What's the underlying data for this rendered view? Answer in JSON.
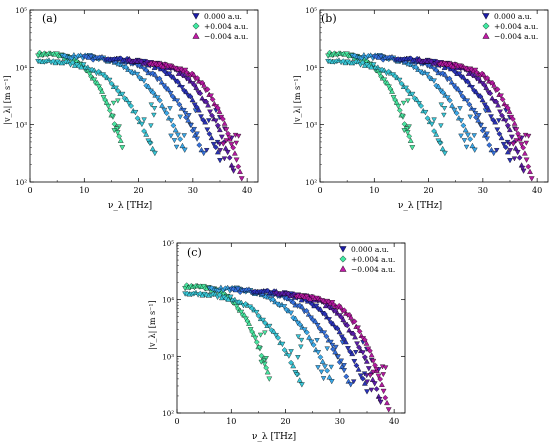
{
  "chart_data": [
    {
      "type": "scatter",
      "panel_label": "(a)",
      "xlabel": "ν_λ [THz]",
      "ylabel": "|v_λ| [m s⁻¹]",
      "xlim": [
        0,
        42
      ],
      "ylim": [
        100,
        100000
      ],
      "yscale": "log",
      "xticks": [
        "0",
        "10",
        "20",
        "30",
        "40"
      ],
      "yticks": [
        "10²",
        "10³",
        "10⁴",
        "10⁵"
      ],
      "legend_position": "top-right",
      "series": [
        {
          "name": "0.000 a.u.",
          "marker": "triangle-down",
          "color": "#1c1ca8"
        },
        {
          "name": "+0.004 a.u.",
          "marker": "diamond",
          "color": "#3ee8a0"
        },
        {
          "name": "−0.004 a.u.",
          "marker": "triangle-up",
          "color": "#c21aa8"
        }
      ],
      "branches": [
        {
          "x_start": 1.5,
          "x_end": 17.0,
          "v_start": 17000,
          "v_end": 400,
          "color": "#48e6a0"
        },
        {
          "x_start": 1.5,
          "x_end": 23.0,
          "v_start": 12500,
          "v_end": 300,
          "color": "#38c6d6"
        },
        {
          "x_start": 6.0,
          "x_end": 28.5,
          "v_start": 15500,
          "v_end": 350,
          "color": "#3aa8e8"
        },
        {
          "x_start": 10.0,
          "x_end": 32.0,
          "v_start": 14500,
          "v_end": 300,
          "color": "#3470dc"
        },
        {
          "x_start": 14.0,
          "x_end": 35.0,
          "v_start": 13500,
          "v_end": 250,
          "color": "#2a32b8"
        },
        {
          "x_start": 18.0,
          "x_end": 37.5,
          "v_start": 12500,
          "v_end": 160,
          "color": "#5a1ca8"
        },
        {
          "x_start": 22.0,
          "x_end": 39.0,
          "v_start": 11000,
          "v_end": 110,
          "color": "#b41aa0"
        }
      ]
    },
    {
      "type": "scatter",
      "panel_label": "(b)",
      "xlabel": "ν_λ [THz]",
      "ylabel": "|v_λ| [m s⁻¹]",
      "xlim": [
        0,
        42
      ],
      "ylim": [
        100,
        100000
      ],
      "yscale": "log",
      "xticks": [
        "0",
        "10",
        "20",
        "30",
        "40"
      ],
      "yticks": [
        "10²",
        "10³",
        "10⁴",
        "10⁵"
      ],
      "legend_position": "top-right",
      "series": [
        {
          "name": "0.000 a.u.",
          "marker": "triangle-down",
          "color": "#1c1ca8"
        },
        {
          "name": "+0.004 a.u.",
          "marker": "diamond",
          "color": "#3ee8a0"
        },
        {
          "name": "−0.004 a.u.",
          "marker": "triangle-up",
          "color": "#c21aa8"
        }
      ],
      "branches": [
        {
          "x_start": 1.5,
          "x_end": 17.0,
          "v_start": 17000,
          "v_end": 400,
          "color": "#48e6a0"
        },
        {
          "x_start": 1.5,
          "x_end": 23.0,
          "v_start": 12500,
          "v_end": 300,
          "color": "#38c6d6"
        },
        {
          "x_start": 6.0,
          "x_end": 28.5,
          "v_start": 15500,
          "v_end": 350,
          "color": "#3aa8e8"
        },
        {
          "x_start": 10.0,
          "x_end": 32.0,
          "v_start": 14500,
          "v_end": 300,
          "color": "#3470dc"
        },
        {
          "x_start": 14.0,
          "x_end": 35.0,
          "v_start": 13500,
          "v_end": 250,
          "color": "#2a32b8"
        },
        {
          "x_start": 18.0,
          "x_end": 37.5,
          "v_start": 12500,
          "v_end": 160,
          "color": "#5a1ca8"
        },
        {
          "x_start": 22.0,
          "x_end": 39.0,
          "v_start": 11000,
          "v_end": 110,
          "color": "#b41aa0"
        }
      ]
    },
    {
      "type": "scatter",
      "panel_label": "(c)",
      "xlabel": "ν_λ [THz]",
      "ylabel": "|v_λ| [m s⁻¹]",
      "xlim": [
        0,
        42
      ],
      "ylim": [
        100,
        100000
      ],
      "yscale": "log",
      "xticks": [
        "0",
        "10",
        "20",
        "30",
        "40"
      ],
      "yticks": [
        "10²",
        "10³",
        "10⁴",
        "10⁵"
      ],
      "legend_position": "top-right",
      "series": [
        {
          "name": "0.000 a.u.",
          "marker": "triangle-down",
          "color": "#1c1ca8"
        },
        {
          "name": "+0.004 a.u.",
          "marker": "diamond",
          "color": "#3ee8a0"
        },
        {
          "name": "−0.004 a.u.",
          "marker": "triangle-up",
          "color": "#c21aa8"
        }
      ],
      "branches": [
        {
          "x_start": 1.5,
          "x_end": 17.0,
          "v_start": 17000,
          "v_end": 400,
          "color": "#48e6a0"
        },
        {
          "x_start": 1.5,
          "x_end": 23.0,
          "v_start": 12500,
          "v_end": 300,
          "color": "#38c6d6"
        },
        {
          "x_start": 6.0,
          "x_end": 28.5,
          "v_start": 15500,
          "v_end": 350,
          "color": "#3aa8e8"
        },
        {
          "x_start": 10.0,
          "x_end": 32.0,
          "v_start": 14500,
          "v_end": 300,
          "color": "#3470dc"
        },
        {
          "x_start": 14.0,
          "x_end": 35.0,
          "v_start": 13500,
          "v_end": 250,
          "color": "#2a32b8"
        },
        {
          "x_start": 18.0,
          "x_end": 37.5,
          "v_start": 12500,
          "v_end": 160,
          "color": "#5a1ca8"
        },
        {
          "x_start": 22.0,
          "x_end": 39.0,
          "v_start": 11000,
          "v_end": 110,
          "color": "#b41aa0"
        }
      ]
    }
  ]
}
